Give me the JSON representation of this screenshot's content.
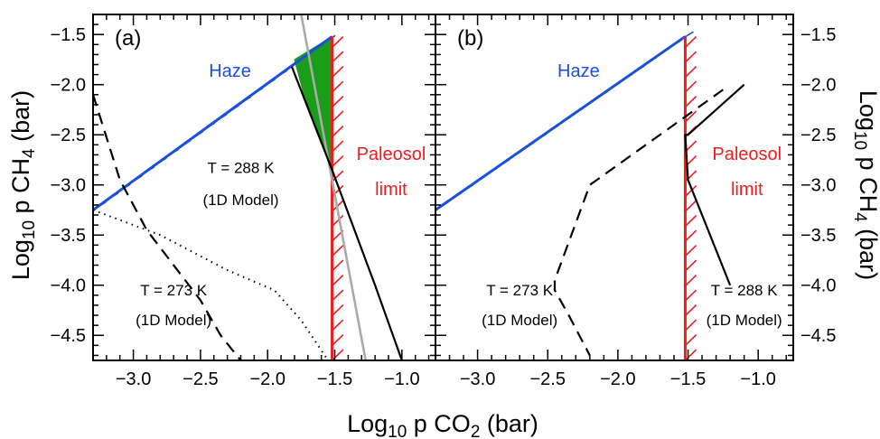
{
  "chart_data": [
    {
      "panel": "(a)",
      "type": "line",
      "xlim": [
        -3.3,
        -0.75
      ],
      "ylim": [
        -4.75,
        -1.3
      ],
      "xticks": [
        -3.0,
        -2.5,
        -2.0,
        -1.5,
        -1.0
      ],
      "xtick_labels": [
        "−3.0",
        "−2.5",
        "−2.0",
        "−1.5",
        "−1.0"
      ],
      "yticks": [
        -1.5,
        -2.0,
        -2.5,
        -3.0,
        -3.5,
        -4.0,
        -4.5
      ],
      "ytick_labels": [
        "−1.5",
        "−2.0",
        "−2.5",
        "−3.0",
        "−3.5",
        "−4.0",
        "−4.5"
      ],
      "ylabel": "Log₁₀ p CH₄  (bar)",
      "colors": {
        "haze": "#1a4fe0",
        "paleosol": "#ee1c1c",
        "habitable": "#1a9e1a",
        "t288_3d": "#aaaaaa",
        "curves": "#000000"
      },
      "series": [
        {
          "role": "haze",
          "x": [
            -3.3,
            -1.52
          ],
          "y": [
            -3.25,
            -1.52
          ]
        },
        {
          "role": "paleosol",
          "x": [
            -1.52,
            -1.52
          ],
          "y": [
            -4.75,
            -1.52
          ]
        },
        {
          "role": "t273-1d",
          "style": "dashed",
          "x": [
            -3.3,
            -3.1,
            -2.9,
            -2.7,
            -2.5,
            -2.35,
            -2.2
          ],
          "y": [
            -2.1,
            -2.95,
            -3.45,
            -3.8,
            -4.15,
            -4.5,
            -4.75
          ]
        },
        {
          "role": "t273-3d",
          "style": "dotted",
          "x": [
            -3.3,
            -2.8,
            -2.3,
            -1.95,
            -1.75,
            -1.55
          ],
          "y": [
            -3.25,
            -3.5,
            -3.85,
            -4.05,
            -4.35,
            -4.75
          ]
        },
        {
          "role": "t288-3d",
          "style": "solid-gray",
          "x": [
            -1.75,
            -1.27
          ],
          "y": [
            -1.3,
            -4.75
          ]
        },
        {
          "role": "t288-1d",
          "style": "solid",
          "x": [
            -1.82,
            -1.52,
            -1.2,
            -1.0
          ],
          "y": [
            -1.82,
            -2.85,
            -4.0,
            -4.75
          ]
        },
        {
          "role": "habitable-region",
          "style": "fill",
          "x": [
            -1.8,
            -1.52,
            -1.52,
            -1.73
          ],
          "y": [
            -1.75,
            -1.52,
            -2.85,
            -2.1
          ]
        }
      ],
      "annotations": [
        {
          "text": "Haze",
          "x": -2.28,
          "y": -1.92
        },
        {
          "text": "Paleosol",
          "x": -1.08,
          "y": -2.75
        },
        {
          "text": "limit",
          "x": -1.08,
          "y": -3.1
        },
        {
          "text": "T = 288 K",
          "x": -2.2,
          "y": -2.88
        },
        {
          "text": "(1D Model)",
          "x": -2.2,
          "y": -3.2
        },
        {
          "text": "T = 273 K",
          "x": -2.7,
          "y": -4.1
        },
        {
          "text": "(1D Model)",
          "x": -2.7,
          "y": -4.4
        }
      ]
    },
    {
      "panel": "(b)",
      "type": "line",
      "xlim": [
        -3.3,
        -0.75
      ],
      "ylim": [
        -4.75,
        -1.3
      ],
      "xticks": [
        -3.0,
        -2.5,
        -2.0,
        -1.5,
        -1.0
      ],
      "xtick_labels": [
        "−3.0",
        "−2.5",
        "−2.0",
        "−1.5",
        "−1.0"
      ],
      "yticks": [
        -1.5,
        -2.0,
        -2.5,
        -3.0,
        -3.5,
        -4.0,
        -4.5
      ],
      "ytick_labels": [
        "−1.5",
        "−2.0",
        "−2.5",
        "−3.0",
        "−3.5",
        "−4.0",
        "−4.5"
      ],
      "ylabel": "Log₁₀ p CH₄  (bar)",
      "colors": {
        "haze": "#1a4fe0",
        "paleosol": "#ee1c1c",
        "curves": "#000000"
      },
      "series": [
        {
          "role": "haze",
          "x": [
            -3.3,
            -1.52
          ],
          "y": [
            -3.25,
            -1.52
          ]
        },
        {
          "role": "paleosol",
          "x": [
            -1.52,
            -1.52
          ],
          "y": [
            -4.75,
            -1.52
          ]
        },
        {
          "role": "t273-1d",
          "style": "dashed",
          "x": [
            -1.25,
            -2.2,
            -2.45,
            -2.45,
            -2.35,
            -2.2
          ],
          "y": [
            -2.05,
            -3.0,
            -3.95,
            -4.05,
            -4.3,
            -4.7
          ]
        },
        {
          "role": "t288-1d",
          "style": "solid",
          "x": [
            -1.1,
            -1.5,
            -1.52,
            -1.5,
            -1.2
          ],
          "y": [
            -2.0,
            -2.5,
            -2.5,
            -2.95,
            -4.0
          ]
        }
      ],
      "annotations": [
        {
          "text": "Haze",
          "x": -2.28,
          "y": -1.92
        },
        {
          "text": "Paleosol",
          "x": -1.08,
          "y": -2.75
        },
        {
          "text": "limit",
          "x": -1.08,
          "y": -3.1
        },
        {
          "text": "T = 273 K",
          "x": -2.7,
          "y": -4.1
        },
        {
          "text": "(1D Model)",
          "x": -2.7,
          "y": -4.4
        },
        {
          "text": "T = 288 K",
          "x": -1.1,
          "y": -4.1
        },
        {
          "text": "(1D Model)",
          "x": -1.1,
          "y": -4.4
        }
      ]
    }
  ],
  "xlabel": {
    "main": "Log",
    "sub": "10",
    "mid": " p CO",
    "sub2": "2",
    "tail": "  (bar)"
  },
  "ylabel_left": {
    "main": "Log",
    "sub": "10",
    "mid": " p CH",
    "sub2": "4",
    "tail": "  (bar)"
  },
  "ylabel_right": {
    "main": "Log",
    "sub": "10",
    "mid": " p CH",
    "sub2": "4",
    "tail": "  (bar)"
  }
}
